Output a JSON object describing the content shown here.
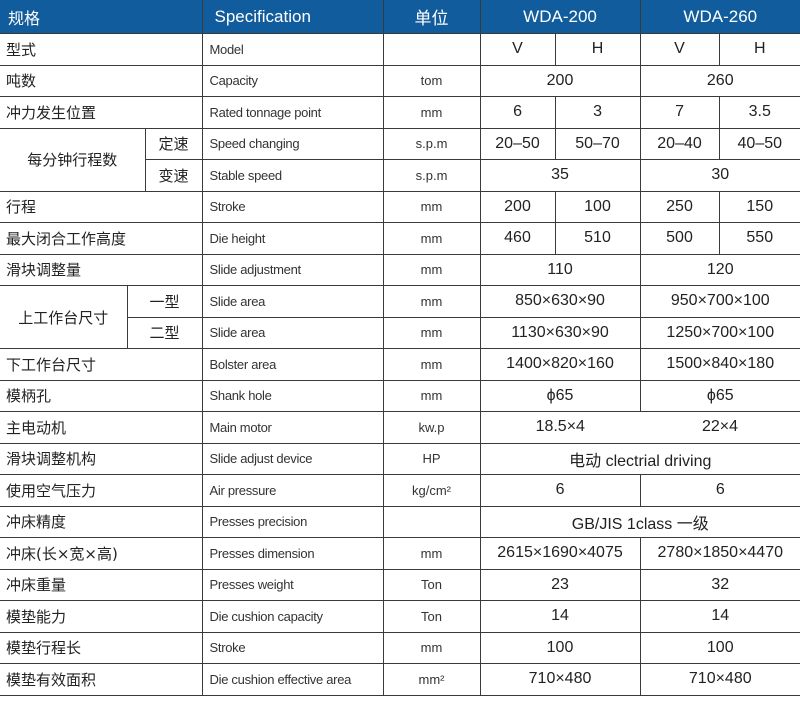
{
  "header": {
    "label": "规格",
    "spec": "Specification",
    "unit": "单位",
    "models": [
      "WDA-200",
      "WDA-260"
    ]
  },
  "colors": {
    "header_bg": "#105c9d",
    "header_text": "#ffffff",
    "border": "#3a3a3a"
  },
  "rows": [
    {
      "label": "型式",
      "spec": "Model",
      "unit": "",
      "values": [
        "V",
        "H",
        "V",
        "H"
      ]
    },
    {
      "label": "吨数",
      "spec": "Capacity",
      "unit": "tom",
      "values": [
        "200",
        "260"
      ]
    },
    {
      "label": "冲力发生位置",
      "spec": "Rated tonnage point",
      "unit": "mm",
      "values": [
        "6",
        "3",
        "7",
        "3.5"
      ]
    },
    {
      "group": "每分钟行程数",
      "sub": "定速",
      "spec": "Speed changing",
      "unit": "s.p.m",
      "values": [
        "20–50",
        "50–70",
        "20–40",
        "40–50"
      ]
    },
    {
      "sub": "变速",
      "spec": "Stable speed",
      "unit": "s.p.m",
      "values": [
        "35",
        "30"
      ]
    },
    {
      "label": "行程",
      "spec": "Stroke",
      "unit": "mm",
      "values": [
        "200",
        "100",
        "250",
        "150"
      ]
    },
    {
      "label": "最大闭合工作高度",
      "spec": "Die height",
      "unit": "mm",
      "values": [
        "460",
        "510",
        "500",
        "550"
      ]
    },
    {
      "label": "滑块调整量",
      "spec": "Slide adjustment",
      "unit": "mm",
      "values": [
        "110",
        "120"
      ]
    },
    {
      "group": "上工作台尺寸",
      "sub": "一型",
      "spec": "Slide area",
      "unit": "mm",
      "values": [
        "850×630×90",
        "950×700×100"
      ]
    },
    {
      "sub": "二型",
      "spec": "Slide area",
      "unit": "mm",
      "values": [
        "1130×630×90",
        "1250×700×100"
      ]
    },
    {
      "label": "下工作台尺寸",
      "spec": "Bolster area",
      "unit": "mm",
      "values": [
        "1400×820×160",
        "1500×840×180"
      ]
    },
    {
      "label": "模柄孔",
      "spec": "Shank hole",
      "unit": "mm",
      "values": [
        "ϕ65",
        "ϕ65"
      ]
    },
    {
      "label": "主电动机",
      "spec": "Main motor",
      "unit": "kw.p",
      "values": [
        "18.5×4",
        "22×4"
      ]
    },
    {
      "label": "滑块调整机构",
      "spec": "Slide adjust device",
      "unit": "HP",
      "values": [
        "电动 clectrial driving"
      ]
    },
    {
      "label": "使用空气压力",
      "spec": "Air pressure",
      "unit": "kg/cm²",
      "values": [
        "6",
        "6"
      ]
    },
    {
      "label": "冲床精度",
      "spec": "Presses precision",
      "unit": "",
      "values": [
        "GB/JIS 1class 一级"
      ]
    },
    {
      "label": "冲床(长×宽×高)",
      "spec": "Presses dimension",
      "unit": "mm",
      "values": [
        "2615×1690×4075",
        "2780×1850×4470"
      ]
    },
    {
      "label": "冲床重量",
      "spec": "Presses weight",
      "unit": "Ton",
      "values": [
        "23",
        "32"
      ]
    },
    {
      "label": "模垫能力",
      "spec": "Die cushion capacity",
      "unit": "Ton",
      "values": [
        "14",
        "14"
      ]
    },
    {
      "label": "模垫行程长",
      "spec": "Stroke",
      "unit": "mm",
      "values": [
        "100",
        "100"
      ]
    },
    {
      "label": "模垫有效面积",
      "spec": "Die cushion effective area",
      "unit": "mm²",
      "values": [
        "710×480",
        "710×480"
      ]
    }
  ]
}
